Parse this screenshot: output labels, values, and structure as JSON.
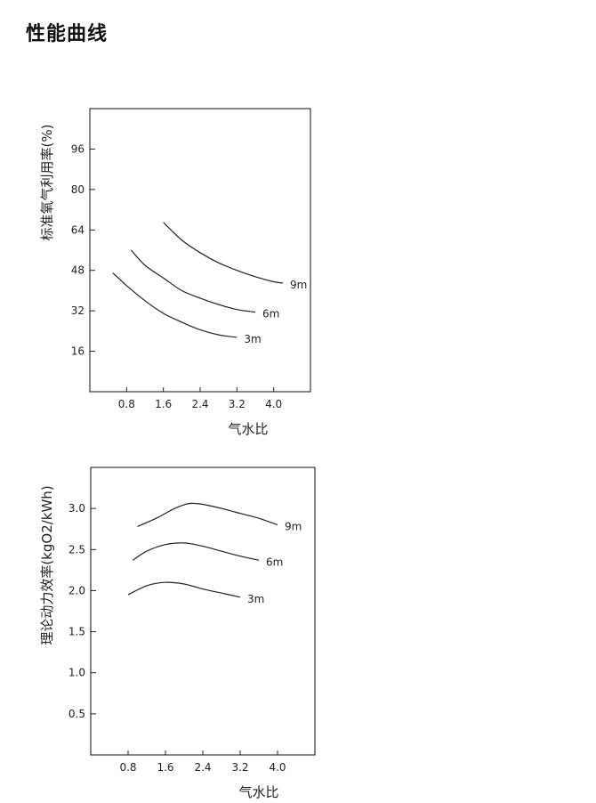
{
  "page": {
    "title": "性能曲线"
  },
  "chart_data": [
    {
      "type": "line",
      "xlabel": "气水比",
      "ylabel": "标准氧气利用率(%)",
      "x_ticks": [
        0.8,
        1.6,
        2.4,
        3.2,
        4.0
      ],
      "y_ticks": [
        16,
        32,
        48,
        64,
        80,
        96
      ],
      "xlim": [
        0.0,
        4.8
      ],
      "ylim": [
        0,
        112
      ],
      "grid": false,
      "series": [
        {
          "name": "9m",
          "x": [
            1.6,
            2.0,
            2.4,
            2.8,
            3.2,
            3.6,
            4.0,
            4.2
          ],
          "y": [
            67,
            60,
            55,
            51,
            48,
            45.5,
            43.5,
            43
          ]
        },
        {
          "name": "6m",
          "x": [
            0.9,
            1.2,
            1.6,
            2.0,
            2.4,
            2.8,
            3.2,
            3.6
          ],
          "y": [
            56,
            50,
            45,
            40,
            37,
            34.5,
            32.5,
            31.5
          ]
        },
        {
          "name": "3m",
          "x": [
            0.5,
            0.8,
            1.2,
            1.6,
            2.0,
            2.4,
            2.8,
            3.2
          ],
          "y": [
            47,
            42,
            36,
            31,
            27.5,
            24.5,
            22.5,
            21.5
          ]
        }
      ]
    },
    {
      "type": "line",
      "xlabel": "气水比",
      "ylabel": "理论动力效率(kgO2/kWh)",
      "x_ticks": [
        0.8,
        1.6,
        2.4,
        3.2,
        4.0
      ],
      "y_ticks": [
        0.5,
        1.0,
        1.5,
        2.0,
        2.5,
        3.0
      ],
      "xlim": [
        0.0,
        4.8
      ],
      "ylim": [
        0.0,
        3.5
      ],
      "grid": false,
      "series": [
        {
          "name": "9m",
          "x": [
            1.0,
            1.4,
            1.8,
            2.1,
            2.4,
            2.8,
            3.2,
            3.6,
            4.0
          ],
          "y": [
            2.78,
            2.88,
            3.0,
            3.06,
            3.05,
            3.0,
            2.94,
            2.88,
            2.8
          ]
        },
        {
          "name": "6m",
          "x": [
            0.9,
            1.2,
            1.6,
            2.0,
            2.4,
            2.8,
            3.2,
            3.6
          ],
          "y": [
            2.37,
            2.48,
            2.56,
            2.58,
            2.54,
            2.48,
            2.42,
            2.37
          ]
        },
        {
          "name": "3m",
          "x": [
            0.8,
            1.2,
            1.6,
            2.0,
            2.4,
            2.8,
            3.2
          ],
          "y": [
            1.95,
            2.06,
            2.1,
            2.08,
            2.02,
            1.97,
            1.92
          ]
        }
      ]
    }
  ]
}
